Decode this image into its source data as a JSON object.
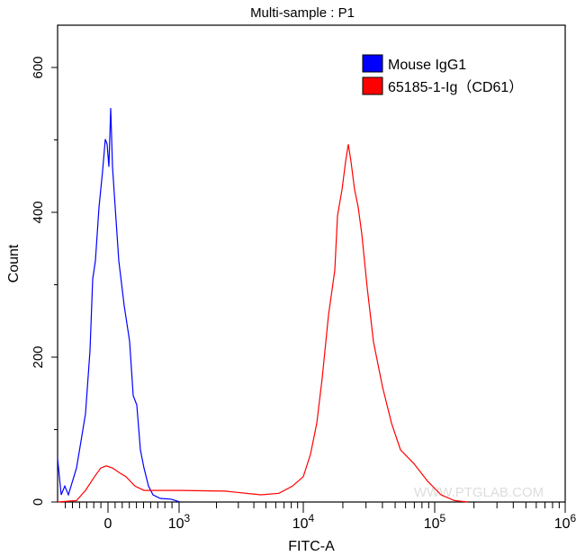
{
  "chart_data": {
    "type": "line",
    "title": "Multi-sample : P1",
    "xlabel": "FITC-A",
    "ylabel": "Count",
    "x_scale": "biexponential",
    "xlim": [
      -709,
      1000000
    ],
    "ylim": [
      0,
      650
    ],
    "x_ticks": [
      {
        "value": 0,
        "label": "0"
      },
      {
        "value": 1000,
        "label": "10",
        "exp": "3"
      },
      {
        "value": 10000,
        "label": "10",
        "exp": "4"
      },
      {
        "value": 100000,
        "label": "10",
        "exp": "5"
      },
      {
        "value": 1000000,
        "label": "10",
        "exp": "6"
      }
    ],
    "y_ticks": [
      0,
      200,
      400,
      600
    ],
    "grid": false,
    "legend_position": "top-right",
    "watermark": "WWW.PTGLAB.COM",
    "series": [
      {
        "name": "Mouse IgG1",
        "color": "#0000ff",
        "x": [
          -709,
          -658,
          -608,
          -557,
          -443,
          -380,
          -316,
          -253,
          -215,
          -177,
          -127,
          -76,
          -38,
          -13,
          13,
          38,
          63,
          101,
          152,
          228,
          304,
          354,
          405,
          456,
          506,
          570,
          633,
          734,
          886,
          1017
        ],
        "y": [
          60,
          10,
          22,
          10,
          47,
          84,
          122,
          209,
          308,
          333,
          407,
          457,
          501,
          494,
          463,
          544,
          463,
          407,
          333,
          271,
          222,
          147,
          134,
          72,
          47,
          22,
          10,
          5,
          4,
          0
        ]
      },
      {
        "name": "65185-1-Ig（CD61）",
        "color": "#ff0000",
        "x": [
          -709,
          -443,
          -316,
          -190,
          -101,
          -25,
          63,
          152,
          253,
          380,
          506,
          696,
          1017,
          2344,
          4560,
          6370,
          8190,
          10000,
          11350,
          12670,
          13930,
          15560,
          17380,
          18200,
          19720,
          21000,
          21990,
          23070,
          24550,
          26150,
          27860,
          30620,
          34200,
          40060,
          46900,
          54900,
          69500,
          88100,
          111700,
          141800,
          179800
        ],
        "y": [
          0,
          2,
          16,
          35,
          47,
          50,
          47,
          41,
          35,
          22,
          16,
          16,
          16,
          15,
          10,
          12,
          22,
          35,
          66,
          109,
          171,
          258,
          320,
          395,
          432,
          470,
          494,
          470,
          432,
          407,
          370,
          296,
          221,
          159,
          109,
          72,
          53,
          29,
          10,
          2,
          0
        ]
      }
    ]
  }
}
